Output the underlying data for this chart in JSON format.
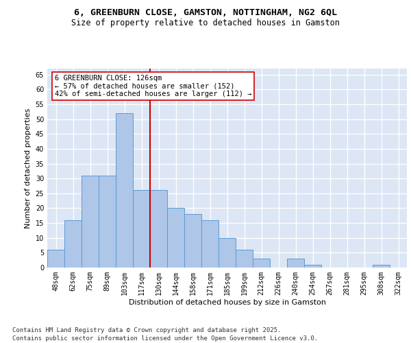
{
  "title_line1": "6, GREENBURN CLOSE, GAMSTON, NOTTINGHAM, NG2 6QL",
  "title_line2": "Size of property relative to detached houses in Gamston",
  "xlabel": "Distribution of detached houses by size in Gamston",
  "ylabel": "Number of detached properties",
  "categories": [
    "48sqm",
    "62sqm",
    "75sqm",
    "89sqm",
    "103sqm",
    "117sqm",
    "130sqm",
    "144sqm",
    "158sqm",
    "171sqm",
    "185sqm",
    "199sqm",
    "212sqm",
    "226sqm",
    "240sqm",
    "254sqm",
    "267sqm",
    "281sqm",
    "295sqm",
    "308sqm",
    "322sqm"
  ],
  "values": [
    6,
    16,
    31,
    31,
    52,
    26,
    26,
    20,
    18,
    16,
    10,
    6,
    3,
    0,
    3,
    1,
    0,
    0,
    0,
    1,
    0
  ],
  "bar_color": "#aec6e8",
  "bar_edge_color": "#5b9bd5",
  "vline_x": 5.5,
  "vline_color": "#cc0000",
  "annotation_text": "6 GREENBURN CLOSE: 126sqm\n← 57% of detached houses are smaller (152)\n42% of semi-detached houses are larger (112) →",
  "annotation_box_color": "#ffffff",
  "annotation_box_edge": "#cc0000",
  "ylim": [
    0,
    67
  ],
  "yticks": [
    0,
    5,
    10,
    15,
    20,
    25,
    30,
    35,
    40,
    45,
    50,
    55,
    60,
    65
  ],
  "background_color": "#dce6f5",
  "grid_color": "#ffffff",
  "fig_background": "#ffffff",
  "footer": "Contains HM Land Registry data © Crown copyright and database right 2025.\nContains public sector information licensed under the Open Government Licence v3.0.",
  "title_fontsize": 9.5,
  "subtitle_fontsize": 8.5,
  "axis_label_fontsize": 8,
  "tick_fontsize": 7,
  "annotation_fontsize": 7.5,
  "footer_fontsize": 6.5
}
